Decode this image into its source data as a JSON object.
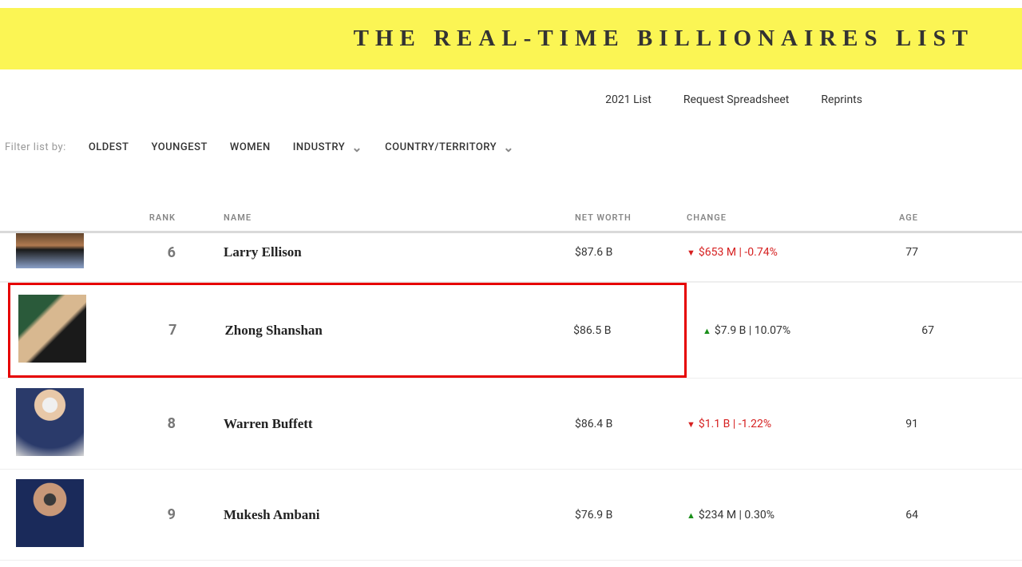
{
  "banner": {
    "title": "THE REAL-TIME BILLIONAIRES LIST"
  },
  "topnav": {
    "items": [
      "2021 List",
      "Request Spreadsheet",
      "Reprints"
    ]
  },
  "filters": {
    "label": "Filter list by:",
    "simple": [
      "OLDEST",
      "YOUNGEST",
      "WOMEN"
    ],
    "dropdowns": [
      "INDUSTRY",
      "COUNTRY/TERRITORY"
    ]
  },
  "columns": {
    "rank": "RANK",
    "name": "NAME",
    "net_worth": "NET WORTH",
    "change": "CHANGE",
    "age": "AGE"
  },
  "rows": [
    {
      "rank": "6",
      "name": "Larry Ellison",
      "net_worth": "$87.6 B",
      "change_dir": "down",
      "change_text": "$653 M | -0.74%",
      "age": "77",
      "photo_bg": "linear-gradient(180deg,#3a2a1a 0%,#b07a50 45%,#1a1a1a 55%,#8aa0c8 100%)",
      "first": true,
      "highlight": false
    },
    {
      "rank": "7",
      "name": "Zhong Shanshan",
      "net_worth": "$86.5 B",
      "change_dir": "up",
      "change_text": "$7.9 B | 10.07%",
      "age": "67",
      "photo_bg": "linear-gradient(135deg,#2a5a3a 0%,#2a5a3a 30%,#d8b890 35%,#d8b890 55%,#1a1a1a 60%,#1a1a1a 100%)",
      "first": false,
      "highlight": true
    },
    {
      "rank": "8",
      "name": "Warren Buffett",
      "net_worth": "$86.4 B",
      "change_dir": "down",
      "change_text": "$1.1 B | -1.22%",
      "age": "91",
      "photo_bg": "radial-gradient(circle at 50% 25%,#f0f0f0 0%,#f0f0f0 12%,#e8c8a8 13%,#e8c8a8 25%,#2a3a6a 26%,#2a3a6a 70%,#d8d8d8 100%)",
      "first": false,
      "highlight": false
    },
    {
      "rank": "9",
      "name": "Mukesh Ambani",
      "net_worth": "$76.9 B",
      "change_dir": "up",
      "change_text": "$234 M | 0.30%",
      "age": "64",
      "photo_bg": "radial-gradient(circle at 50% 30%,#3a3a3a 0%,#3a3a3a 10%,#c89878 11%,#c89878 28%,#1a2a5a 29%,#1a2a5a 100%)",
      "first": false,
      "highlight": false
    }
  ]
}
